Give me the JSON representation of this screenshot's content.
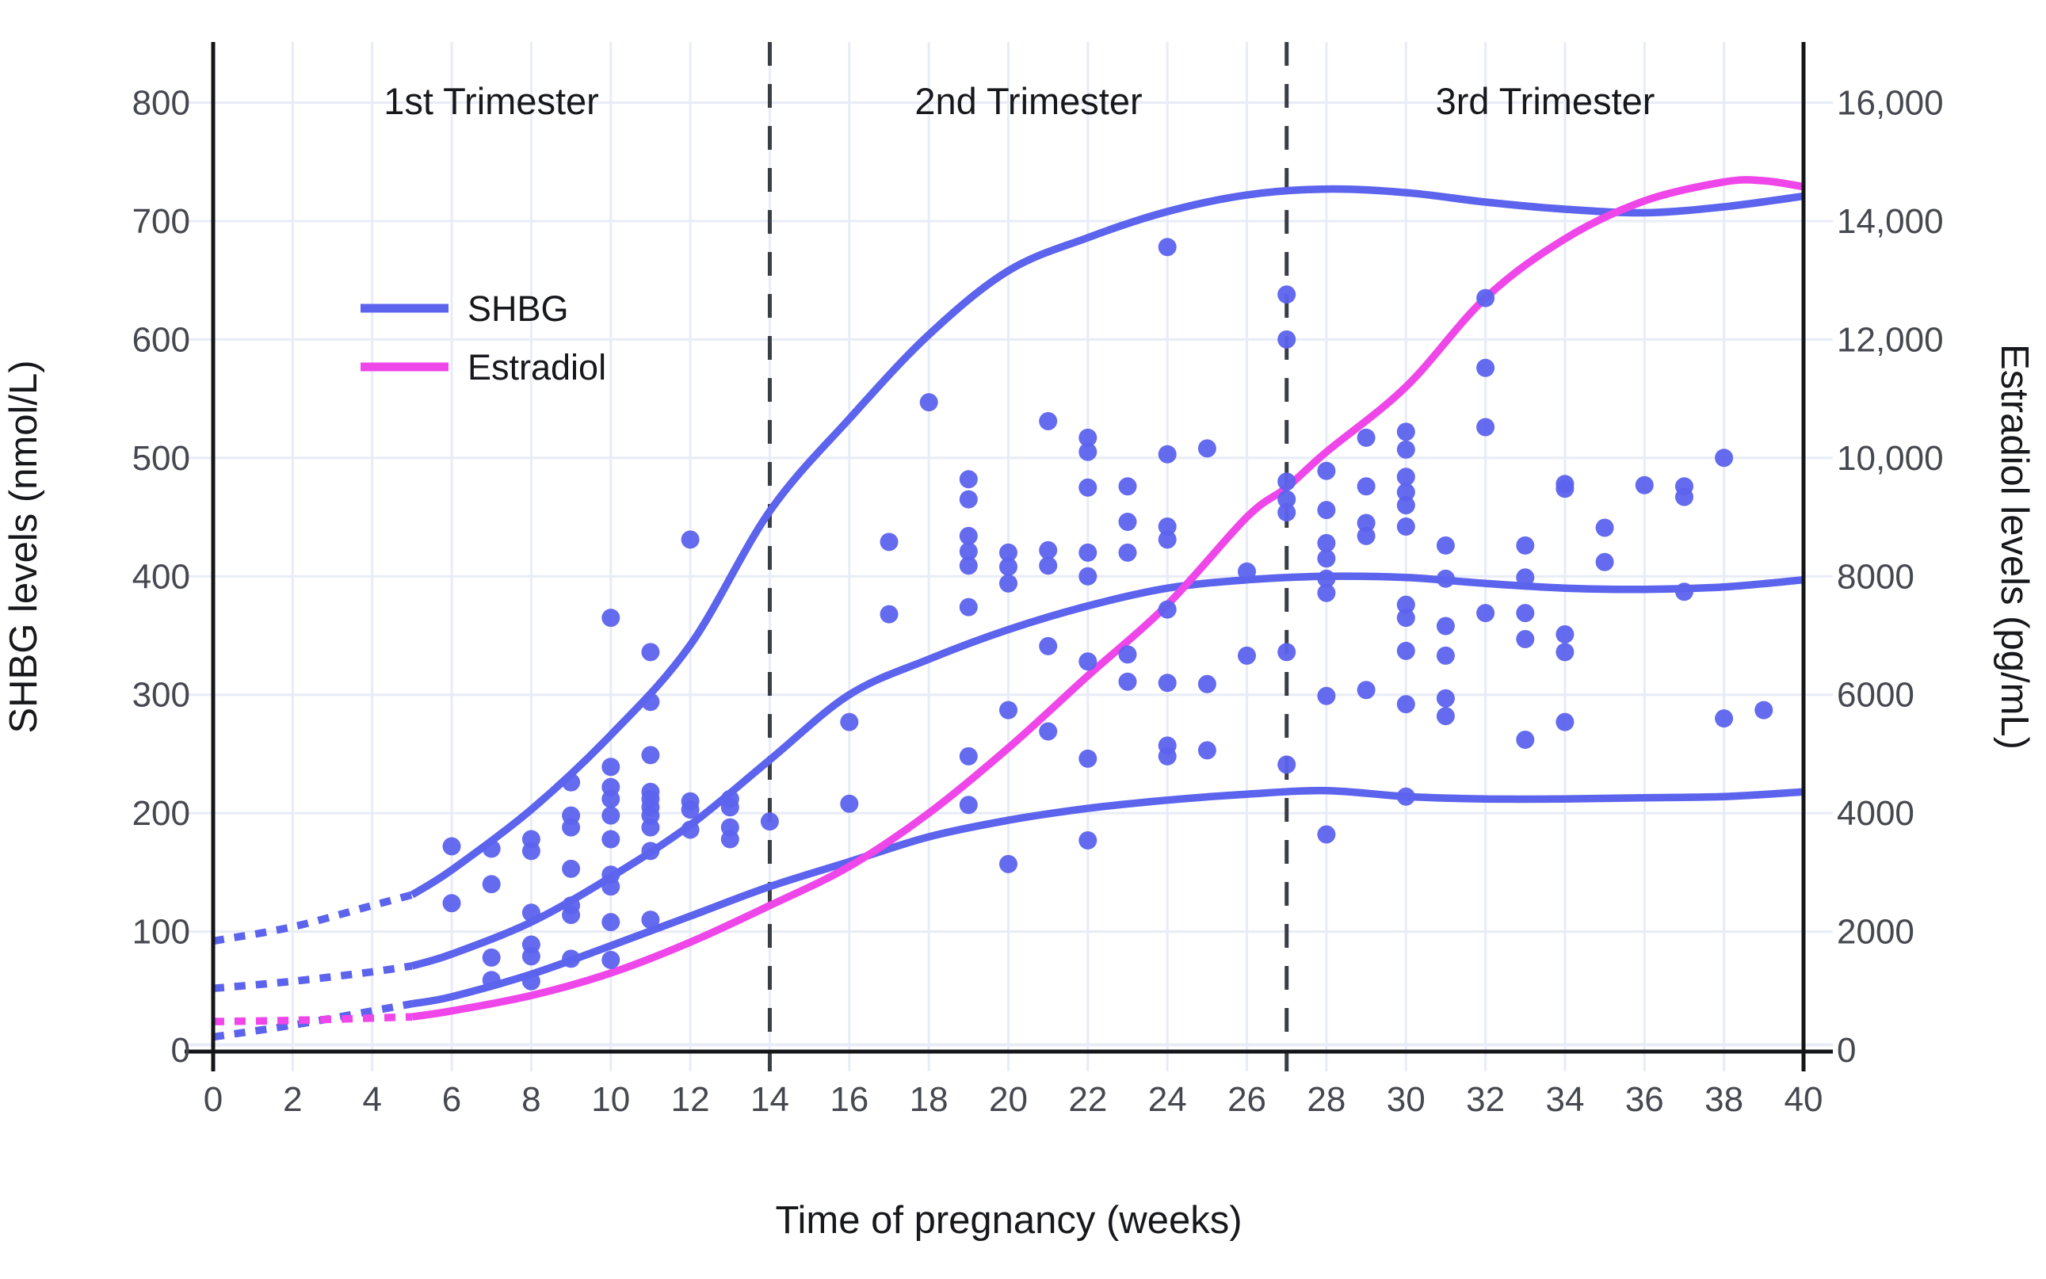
{
  "chart_data": {
    "type": "scatter",
    "title": "",
    "x_axis": {
      "label": "Time of pregnancy (weeks)",
      "range": [
        0,
        40
      ],
      "ticks": [
        0,
        2,
        4,
        6,
        8,
        10,
        12,
        14,
        16,
        18,
        20,
        22,
        24,
        26,
        28,
        30,
        32,
        34,
        36,
        38,
        40
      ]
    },
    "y_axis_left": {
      "label": "SHBG levels (nmol/L)",
      "units": "nmol/L",
      "range": [
        0,
        800
      ],
      "ticks": [
        0,
        100,
        200,
        300,
        400,
        500,
        600,
        700,
        800
      ]
    },
    "y_axis_right": {
      "label": "Estradiol levels (pg/mL)",
      "units": "pg/mL",
      "range": [
        0,
        16000
      ],
      "tick_values": [
        0,
        2000,
        4000,
        6000,
        8000,
        10000,
        12000,
        14000,
        16000
      ],
      "tick_labels": [
        "0",
        "2000",
        "4000",
        "6000",
        "8000",
        "10,000",
        "12,000",
        "14,000",
        "16,000"
      ]
    },
    "grid": true,
    "trimesters": [
      {
        "label": "1st Trimester",
        "span_weeks": [
          0,
          14
        ],
        "label_week": 7
      },
      {
        "label": "2nd Trimester",
        "span_weeks": [
          14,
          27
        ],
        "label_week": 20.5
      },
      {
        "label": "3rd Trimester",
        "span_weeks": [
          27,
          40
        ],
        "label_week": 33.5
      }
    ],
    "boundary_weeks": [
      14,
      27
    ],
    "legend": [
      {
        "name": "SHBG",
        "color": "#5C63ED"
      },
      {
        "name": "Estradiol",
        "color": "#EF46E9"
      }
    ],
    "curves": {
      "shbg_upper": {
        "units": "nmol/L",
        "dotted_extension": [
          [
            0,
            92
          ],
          [
            2,
            104
          ],
          [
            4,
            122
          ],
          [
            5,
            131
          ]
        ],
        "solid": [
          [
            5,
            131
          ],
          [
            6,
            152
          ],
          [
            8,
            203
          ],
          [
            10,
            266
          ],
          [
            12,
            342
          ],
          [
            14,
            455
          ],
          [
            16,
            533
          ],
          [
            18,
            604
          ],
          [
            20,
            658
          ],
          [
            22,
            686
          ],
          [
            24,
            708
          ],
          [
            26,
            722
          ],
          [
            28,
            727
          ],
          [
            30,
            724
          ],
          [
            32,
            716
          ],
          [
            34,
            710
          ],
          [
            36,
            707
          ],
          [
            38,
            712
          ],
          [
            40,
            721
          ]
        ]
      },
      "shbg_median": {
        "units": "nmol/L",
        "dotted_extension": [
          [
            0,
            52
          ],
          [
            2,
            58
          ],
          [
            4,
            66
          ],
          [
            5,
            71
          ]
        ],
        "solid": [
          [
            5,
            71
          ],
          [
            6,
            81
          ],
          [
            8,
            108
          ],
          [
            10,
            146
          ],
          [
            12,
            190
          ],
          [
            14,
            245
          ],
          [
            16,
            300
          ],
          [
            18,
            330
          ],
          [
            20,
            355
          ],
          [
            22,
            375
          ],
          [
            24,
            390
          ],
          [
            26,
            397
          ],
          [
            28,
            400
          ],
          [
            30,
            399
          ],
          [
            32,
            394
          ],
          [
            34,
            390
          ],
          [
            36,
            389
          ],
          [
            38,
            391
          ],
          [
            40,
            397
          ]
        ]
      },
      "shbg_lower": {
        "units": "nmol/L",
        "dotted_extension": [
          [
            0,
            11
          ],
          [
            2,
            21
          ],
          [
            4,
            33
          ],
          [
            5,
            39
          ]
        ],
        "solid": [
          [
            5,
            39
          ],
          [
            6,
            45
          ],
          [
            8,
            64
          ],
          [
            10,
            88
          ],
          [
            12,
            113
          ],
          [
            14,
            138
          ],
          [
            16,
            159
          ],
          [
            18,
            180
          ],
          [
            20,
            194
          ],
          [
            22,
            204
          ],
          [
            24,
            211
          ],
          [
            26,
            216
          ],
          [
            28,
            219
          ],
          [
            30,
            214
          ],
          [
            32,
            212
          ],
          [
            34,
            212
          ],
          [
            36,
            213
          ],
          [
            38,
            214
          ],
          [
            40,
            218
          ]
        ]
      },
      "estradiol": {
        "units": "pg/mL",
        "dotted_extension": [
          [
            0,
            480
          ],
          [
            2,
            500
          ],
          [
            4,
            540
          ],
          [
            5,
            560
          ]
        ],
        "solid": [
          [
            5,
            560
          ],
          [
            6,
            660
          ],
          [
            8,
            920
          ],
          [
            10,
            1300
          ],
          [
            12,
            1820
          ],
          [
            14,
            2440
          ],
          [
            16,
            3100
          ],
          [
            18,
            4000
          ],
          [
            20,
            5100
          ],
          [
            22,
            6320
          ],
          [
            24,
            7520
          ],
          [
            26,
            9000
          ],
          [
            27,
            9500
          ],
          [
            28,
            10100
          ],
          [
            30,
            11200
          ],
          [
            32,
            12700
          ],
          [
            34,
            13700
          ],
          [
            36,
            14340
          ],
          [
            38,
            14660
          ],
          [
            39,
            14680
          ],
          [
            40,
            14580
          ]
        ]
      }
    },
    "scatter_shbg_nmol_L": [
      [
        6,
        172
      ],
      [
        6,
        124
      ],
      [
        7,
        170
      ],
      [
        7,
        140
      ],
      [
        7,
        78
      ],
      [
        7,
        59
      ],
      [
        8,
        178
      ],
      [
        8,
        168
      ],
      [
        8,
        116
      ],
      [
        8,
        89
      ],
      [
        8,
        79
      ],
      [
        8,
        58
      ],
      [
        9,
        226
      ],
      [
        9,
        198
      ],
      [
        9,
        188
      ],
      [
        9,
        153
      ],
      [
        9,
        122
      ],
      [
        9,
        114
      ],
      [
        9,
        77
      ],
      [
        10,
        365
      ],
      [
        10,
        239
      ],
      [
        10,
        222
      ],
      [
        10,
        212
      ],
      [
        10,
        198
      ],
      [
        10,
        178
      ],
      [
        10,
        148
      ],
      [
        10,
        138
      ],
      [
        10,
        108
      ],
      [
        10,
        76
      ],
      [
        11,
        336
      ],
      [
        11,
        294
      ],
      [
        11,
        249
      ],
      [
        11,
        218
      ],
      [
        11,
        212
      ],
      [
        11,
        205
      ],
      [
        11,
        198
      ],
      [
        11,
        188
      ],
      [
        11,
        168
      ],
      [
        11,
        110
      ],
      [
        12,
        431
      ],
      [
        12,
        210
      ],
      [
        12,
        203
      ],
      [
        12,
        186
      ],
      [
        13,
        212
      ],
      [
        13,
        205
      ],
      [
        13,
        188
      ],
      [
        13,
        178
      ],
      [
        14,
        193
      ],
      [
        16,
        277
      ],
      [
        16,
        208
      ],
      [
        17,
        429
      ],
      [
        17,
        368
      ],
      [
        18,
        547
      ],
      [
        19,
        482
      ],
      [
        19,
        465
      ],
      [
        19,
        434
      ],
      [
        19,
        421
      ],
      [
        19,
        409
      ],
      [
        19,
        374
      ],
      [
        19,
        248
      ],
      [
        19,
        207
      ],
      [
        20,
        420
      ],
      [
        20,
        408
      ],
      [
        20,
        394
      ],
      [
        20,
        287
      ],
      [
        20,
        157
      ],
      [
        21,
        531
      ],
      [
        21,
        422
      ],
      [
        21,
        409
      ],
      [
        21,
        341
      ],
      [
        21,
        269
      ],
      [
        22,
        517
      ],
      [
        22,
        505
      ],
      [
        22,
        475
      ],
      [
        22,
        420
      ],
      [
        22,
        400
      ],
      [
        22,
        328
      ],
      [
        22,
        246
      ],
      [
        22,
        177
      ],
      [
        23,
        476
      ],
      [
        23,
        446
      ],
      [
        23,
        420
      ],
      [
        23,
        334
      ],
      [
        23,
        311
      ],
      [
        24,
        678
      ],
      [
        24,
        503
      ],
      [
        24,
        442
      ],
      [
        24,
        431
      ],
      [
        24,
        372
      ],
      [
        24,
        310
      ],
      [
        24,
        257
      ],
      [
        24,
        248
      ],
      [
        25,
        508
      ],
      [
        25,
        309
      ],
      [
        25,
        253
      ],
      [
        26,
        404
      ],
      [
        26,
        333
      ],
      [
        27,
        638
      ],
      [
        27,
        600
      ],
      [
        27,
        480
      ],
      [
        27,
        465
      ],
      [
        27,
        454
      ],
      [
        27,
        336
      ],
      [
        27,
        241
      ],
      [
        28,
        489
      ],
      [
        28,
        456
      ],
      [
        28,
        428
      ],
      [
        28,
        415
      ],
      [
        28,
        398
      ],
      [
        28,
        386
      ],
      [
        28,
        299
      ],
      [
        28,
        182
      ],
      [
        29,
        517
      ],
      [
        29,
        476
      ],
      [
        29,
        445
      ],
      [
        29,
        434
      ],
      [
        29,
        304
      ],
      [
        30,
        522
      ],
      [
        30,
        507
      ],
      [
        30,
        484
      ],
      [
        30,
        471
      ],
      [
        30,
        460
      ],
      [
        30,
        442
      ],
      [
        30,
        376
      ],
      [
        30,
        365
      ],
      [
        30,
        337
      ],
      [
        30,
        292
      ],
      [
        30,
        214
      ],
      [
        31,
        426
      ],
      [
        31,
        398
      ],
      [
        31,
        358
      ],
      [
        31,
        333
      ],
      [
        31,
        297
      ],
      [
        31,
        282
      ],
      [
        32,
        635
      ],
      [
        32,
        576
      ],
      [
        32,
        526
      ],
      [
        32,
        369
      ],
      [
        33,
        426
      ],
      [
        33,
        399
      ],
      [
        33,
        369
      ],
      [
        33,
        347
      ],
      [
        33,
        262
      ],
      [
        34,
        478
      ],
      [
        34,
        474
      ],
      [
        34,
        351
      ],
      [
        34,
        336
      ],
      [
        34,
        277
      ],
      [
        35,
        441
      ],
      [
        35,
        412
      ],
      [
        36,
        477
      ],
      [
        37,
        476
      ],
      [
        37,
        467
      ],
      [
        37,
        387
      ],
      [
        38,
        500
      ],
      [
        38,
        280
      ],
      [
        39,
        287
      ]
    ],
    "layout_hints": {
      "legend_position": "upper-left-inside",
      "scatter_color": "#5C63ED",
      "gridline_color": "#E8ECF7",
      "axis_color": "#141519",
      "boundary_line_color": "#3A3D44",
      "tick_text_color": "#45484F"
    }
  }
}
